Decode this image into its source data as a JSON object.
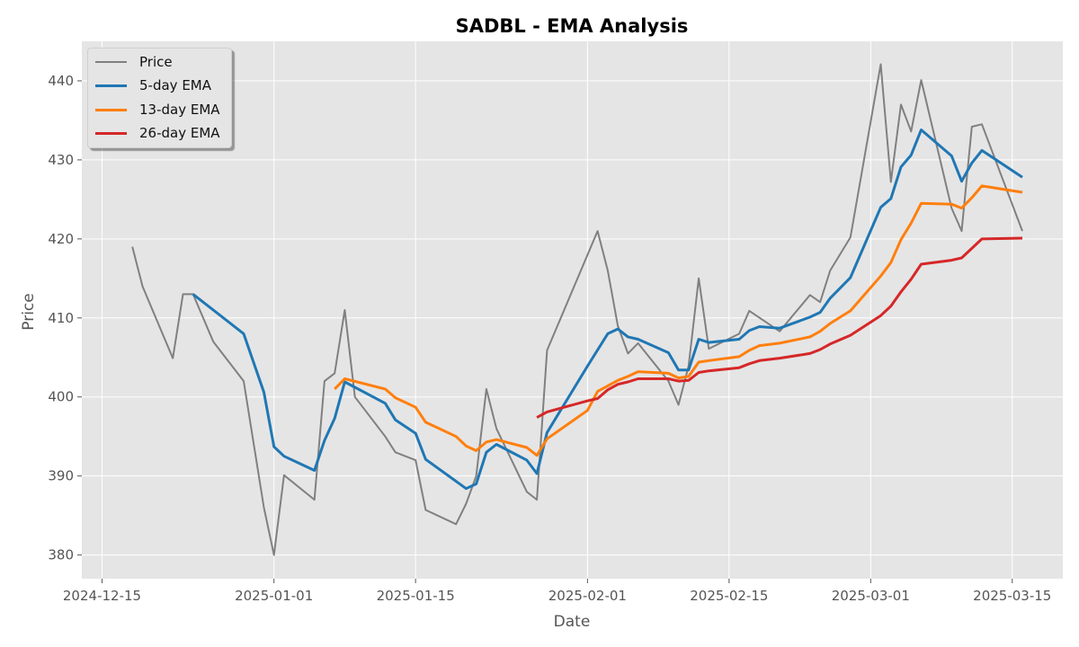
{
  "chart_data": {
    "type": "line",
    "title": "SADBL - EMA Analysis",
    "xlabel": "Date",
    "ylabel": "Price",
    "x_tick_labels": [
      "2024-12-15",
      "2025-01-01",
      "2025-01-15",
      "2025-02-01",
      "2025-02-15",
      "2025-03-01",
      "2025-03-15"
    ],
    "x_tick_dates": [
      "2024-12-15",
      "2025-01-01",
      "2025-01-15",
      "2025-02-01",
      "2025-02-15",
      "2025-03-01",
      "2025-03-15"
    ],
    "y_ticks": [
      380,
      390,
      400,
      410,
      420,
      430,
      440
    ],
    "xlim": [
      "2024-12-13",
      "2025-03-20"
    ],
    "ylim": [
      377,
      445
    ],
    "grid": true,
    "legend_position": "top-left",
    "series": [
      {
        "name": "Price",
        "color": "#808080",
        "width": 2,
        "points": [
          [
            "2024-12-18",
            419.0
          ],
          [
            "2024-12-19",
            414.0
          ],
          [
            "2024-12-22",
            404.9
          ],
          [
            "2024-12-23",
            413.0
          ],
          [
            "2024-12-24",
            413.0
          ],
          [
            "2024-12-26",
            407.0
          ],
          [
            "2024-12-29",
            402.0
          ],
          [
            "2024-12-31",
            386.0
          ],
          [
            "2025-01-01",
            380.0
          ],
          [
            "2025-01-02",
            390.1
          ],
          [
            "2025-01-05",
            387.0
          ],
          [
            "2025-01-06",
            402.0
          ],
          [
            "2025-01-07",
            403.0
          ],
          [
            "2025-01-08",
            411.0
          ],
          [
            "2025-01-09",
            400.0
          ],
          [
            "2025-01-12",
            395.0
          ],
          [
            "2025-01-13",
            393.0
          ],
          [
            "2025-01-15",
            392.0
          ],
          [
            "2025-01-16",
            385.7
          ],
          [
            "2025-01-19",
            383.9
          ],
          [
            "2025-01-20",
            386.5
          ],
          [
            "2025-01-21",
            390.0
          ],
          [
            "2025-01-22",
            401.0
          ],
          [
            "2025-01-23",
            396.0
          ],
          [
            "2025-01-26",
            388.0
          ],
          [
            "2025-01-27",
            387.0
          ],
          [
            "2025-01-28",
            405.9
          ],
          [
            "2025-02-02",
            421.0
          ],
          [
            "2025-02-03",
            416.0
          ],
          [
            "2025-02-04",
            409.0
          ],
          [
            "2025-02-05",
            405.5
          ],
          [
            "2025-02-06",
            406.8
          ],
          [
            "2025-02-09",
            402.0
          ],
          [
            "2025-02-10",
            399.0
          ],
          [
            "2025-02-11",
            403.9
          ],
          [
            "2025-02-12",
            415.0
          ],
          [
            "2025-02-13",
            406.1
          ],
          [
            "2025-02-16",
            408.0
          ],
          [
            "2025-02-17",
            410.9
          ],
          [
            "2025-02-20",
            408.3
          ],
          [
            "2025-02-23",
            412.9
          ],
          [
            "2025-02-24",
            412.0
          ],
          [
            "2025-02-25",
            416.0
          ],
          [
            "2025-02-27",
            420.2
          ],
          [
            "2025-03-02",
            442.1
          ],
          [
            "2025-03-03",
            427.2
          ],
          [
            "2025-03-04",
            437.0
          ],
          [
            "2025-03-05",
            433.6
          ],
          [
            "2025-03-06",
            440.1
          ],
          [
            "2025-03-09",
            423.9
          ],
          [
            "2025-03-10",
            421.0
          ],
          [
            "2025-03-11",
            434.2
          ],
          [
            "2025-03-12",
            434.5
          ],
          [
            "2025-03-16",
            421.0
          ]
        ]
      },
      {
        "name": "5-day EMA",
        "color": "#1f77b4",
        "width": 3,
        "points": [
          [
            "2024-12-24",
            413.0
          ],
          [
            "2024-12-29",
            408.0
          ],
          [
            "2024-12-31",
            400.6
          ],
          [
            "2025-01-01",
            393.7
          ],
          [
            "2025-01-02",
            392.5
          ],
          [
            "2025-01-05",
            390.7
          ],
          [
            "2025-01-06",
            394.5
          ],
          [
            "2025-01-07",
            397.3
          ],
          [
            "2025-01-08",
            401.9
          ],
          [
            "2025-01-12",
            399.2
          ],
          [
            "2025-01-13",
            397.1
          ],
          [
            "2025-01-15",
            395.4
          ],
          [
            "2025-01-16",
            392.1
          ],
          [
            "2025-01-20",
            388.4
          ],
          [
            "2025-01-21",
            389.0
          ],
          [
            "2025-01-22",
            393.0
          ],
          [
            "2025-01-23",
            394.0
          ],
          [
            "2025-01-26",
            392.0
          ],
          [
            "2025-01-27",
            390.3
          ],
          [
            "2025-01-28",
            395.5
          ],
          [
            "2025-02-01",
            403.9
          ],
          [
            "2025-02-03",
            408.0
          ],
          [
            "2025-02-04",
            408.6
          ],
          [
            "2025-02-05",
            407.6
          ],
          [
            "2025-02-06",
            407.3
          ],
          [
            "2025-02-09",
            405.6
          ],
          [
            "2025-02-10",
            403.4
          ],
          [
            "2025-02-11",
            403.4
          ],
          [
            "2025-02-12",
            407.3
          ],
          [
            "2025-02-13",
            406.9
          ],
          [
            "2025-02-16",
            407.3
          ],
          [
            "2025-02-17",
            408.4
          ],
          [
            "2025-02-18",
            408.9
          ],
          [
            "2025-02-20",
            408.7
          ],
          [
            "2025-02-23",
            410.1
          ],
          [
            "2025-02-24",
            410.7
          ],
          [
            "2025-02-25",
            412.5
          ],
          [
            "2025-02-27",
            415.1
          ],
          [
            "2025-03-02",
            424.0
          ],
          [
            "2025-03-03",
            425.1
          ],
          [
            "2025-03-04",
            429.1
          ],
          [
            "2025-03-05",
            430.6
          ],
          [
            "2025-03-06",
            433.8
          ],
          [
            "2025-03-09",
            430.5
          ],
          [
            "2025-03-10",
            427.3
          ],
          [
            "2025-03-11",
            429.6
          ],
          [
            "2025-03-12",
            431.2
          ],
          [
            "2025-03-16",
            427.8
          ]
        ]
      },
      {
        "name": "13-day EMA",
        "color": "#ff7f0e",
        "width": 3,
        "points": [
          [
            "2025-01-07",
            401.0
          ],
          [
            "2025-01-08",
            402.3
          ],
          [
            "2025-01-12",
            401.0
          ],
          [
            "2025-01-13",
            399.9
          ],
          [
            "2025-01-15",
            398.7
          ],
          [
            "2025-01-16",
            396.8
          ],
          [
            "2025-01-19",
            395.0
          ],
          [
            "2025-01-20",
            393.8
          ],
          [
            "2025-01-21",
            393.2
          ],
          [
            "2025-01-22",
            394.3
          ],
          [
            "2025-01-23",
            394.6
          ],
          [
            "2025-01-26",
            393.6
          ],
          [
            "2025-01-27",
            392.6
          ],
          [
            "2025-01-28",
            394.7
          ],
          [
            "2025-02-01",
            398.3
          ],
          [
            "2025-02-02",
            400.7
          ],
          [
            "2025-02-04",
            402.1
          ],
          [
            "2025-02-05",
            402.6
          ],
          [
            "2025-02-06",
            403.2
          ],
          [
            "2025-02-09",
            403.0
          ],
          [
            "2025-02-10",
            402.4
          ],
          [
            "2025-02-11",
            402.6
          ],
          [
            "2025-02-12",
            404.4
          ],
          [
            "2025-02-13",
            404.6
          ],
          [
            "2025-02-16",
            405.1
          ],
          [
            "2025-02-17",
            405.9
          ],
          [
            "2025-02-18",
            406.5
          ],
          [
            "2025-02-20",
            406.8
          ],
          [
            "2025-02-23",
            407.6
          ],
          [
            "2025-02-24",
            408.3
          ],
          [
            "2025-02-25",
            409.3
          ],
          [
            "2025-02-27",
            410.9
          ],
          [
            "2025-03-02",
            415.3
          ],
          [
            "2025-03-03",
            417.0
          ],
          [
            "2025-03-04",
            419.9
          ],
          [
            "2025-03-05",
            422.0
          ],
          [
            "2025-03-06",
            424.5
          ],
          [
            "2025-03-09",
            424.4
          ],
          [
            "2025-03-10",
            423.9
          ],
          [
            "2025-03-11",
            425.2
          ],
          [
            "2025-03-12",
            426.7
          ],
          [
            "2025-03-16",
            425.9
          ]
        ]
      },
      {
        "name": "26-day EMA",
        "color": "#d62728",
        "width": 3,
        "points": [
          [
            "2025-01-27",
            397.4
          ],
          [
            "2025-01-28",
            398.1
          ],
          [
            "2025-02-01",
            399.5
          ],
          [
            "2025-02-02",
            399.8
          ],
          [
            "2025-02-03",
            400.9
          ],
          [
            "2025-02-04",
            401.6
          ],
          [
            "2025-02-05",
            401.9
          ],
          [
            "2025-02-06",
            402.3
          ],
          [
            "2025-02-09",
            402.3
          ],
          [
            "2025-02-10",
            402.0
          ],
          [
            "2025-02-11",
            402.1
          ],
          [
            "2025-02-12",
            403.1
          ],
          [
            "2025-02-13",
            403.3
          ],
          [
            "2025-02-16",
            403.7
          ],
          [
            "2025-02-17",
            404.2
          ],
          [
            "2025-02-18",
            404.6
          ],
          [
            "2025-02-20",
            404.9
          ],
          [
            "2025-02-23",
            405.5
          ],
          [
            "2025-02-24",
            406.0
          ],
          [
            "2025-02-25",
            406.7
          ],
          [
            "2025-02-27",
            407.8
          ],
          [
            "2025-03-02",
            410.3
          ],
          [
            "2025-03-03",
            411.5
          ],
          [
            "2025-03-04",
            413.3
          ],
          [
            "2025-03-05",
            414.9
          ],
          [
            "2025-03-06",
            416.8
          ],
          [
            "2025-03-09",
            417.3
          ],
          [
            "2025-03-10",
            417.6
          ],
          [
            "2025-03-11",
            418.8
          ],
          [
            "2025-03-12",
            420.0
          ],
          [
            "2025-03-16",
            420.1
          ]
        ]
      }
    ]
  }
}
